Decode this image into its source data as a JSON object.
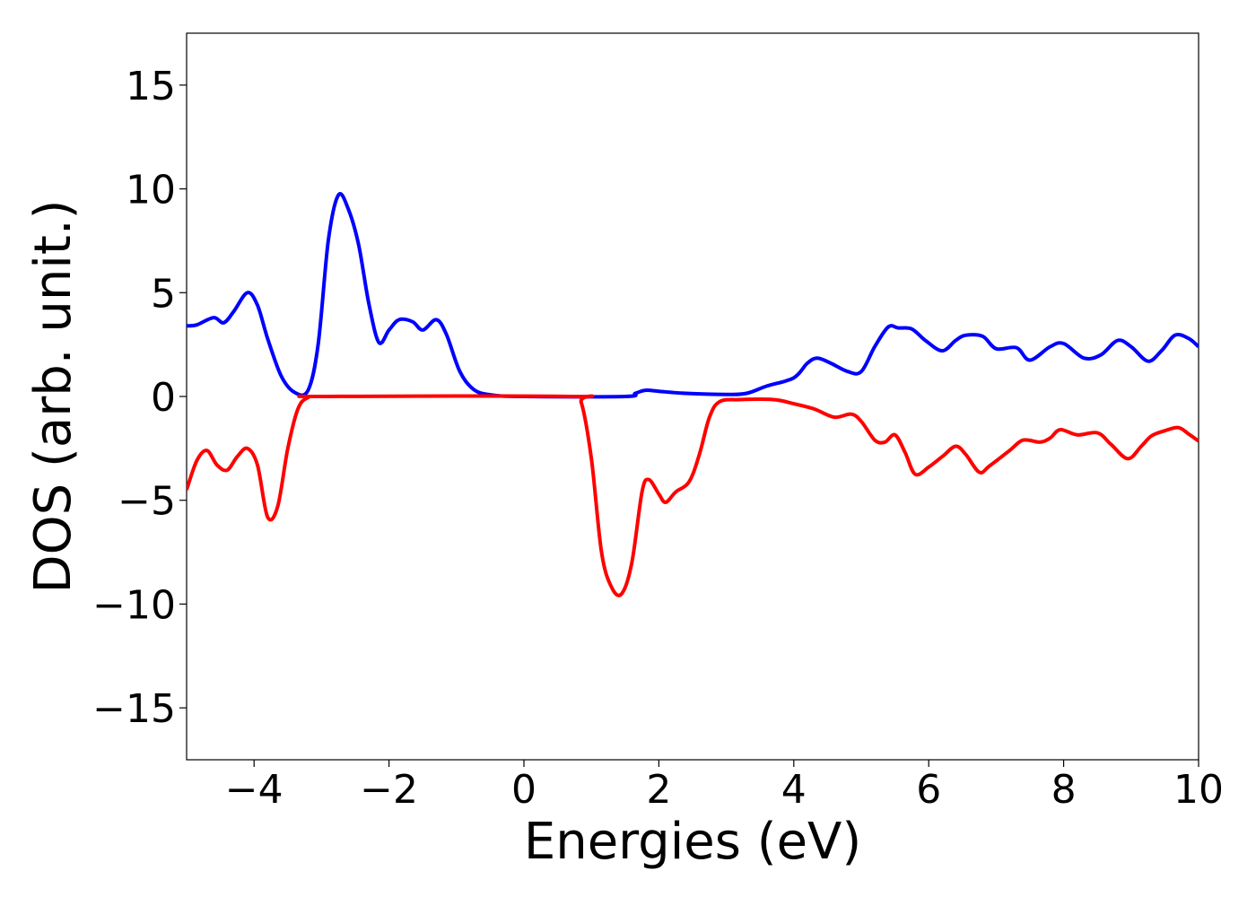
{
  "chart_data": {
    "type": "line",
    "xlabel": "Energies (eV)",
    "ylabel": "DOS (arb. unit.)",
    "xlim": [
      -5,
      10
    ],
    "ylim": [
      -17.5,
      17.5
    ],
    "x_ticks": [
      -4,
      -2,
      0,
      2,
      4,
      6,
      8,
      10
    ],
    "x_tick_labels": [
      "−4",
      "−2",
      "0",
      "2",
      "4",
      "6",
      "8",
      "10"
    ],
    "y_ticks": [
      15,
      10,
      5,
      0,
      -5,
      -10,
      -15
    ],
    "y_tick_labels": [
      "15",
      "10",
      "5",
      "0",
      "−5",
      "−10",
      "−15"
    ],
    "grid": false,
    "series": [
      {
        "color": "#0000ff",
        "points": [
          [
            -5.0,
            3.4
          ],
          [
            -4.85,
            3.45
          ],
          [
            -4.6,
            3.8
          ],
          [
            -4.45,
            3.55
          ],
          [
            -4.3,
            4.1
          ],
          [
            -4.1,
            5.0
          ],
          [
            -3.95,
            4.4
          ],
          [
            -3.8,
            2.8
          ],
          [
            -3.6,
            1.0
          ],
          [
            -3.4,
            0.2
          ],
          [
            -3.2,
            0.3
          ],
          [
            -3.05,
            2.5
          ],
          [
            -2.9,
            7.5
          ],
          [
            -2.75,
            9.7
          ],
          [
            -2.6,
            9.0
          ],
          [
            -2.45,
            7.3
          ],
          [
            -2.3,
            4.5
          ],
          [
            -2.15,
            2.6
          ],
          [
            -2.0,
            3.2
          ],
          [
            -1.85,
            3.7
          ],
          [
            -1.65,
            3.6
          ],
          [
            -1.5,
            3.2
          ],
          [
            -1.3,
            3.7
          ],
          [
            -1.15,
            3.0
          ],
          [
            -0.95,
            1.2
          ],
          [
            -0.75,
            0.35
          ],
          [
            -0.5,
            0.08
          ],
          [
            0.0,
            0.0
          ],
          [
            1.5,
            0.0
          ],
          [
            1.65,
            0.15
          ],
          [
            1.8,
            0.3
          ],
          [
            2.0,
            0.25
          ],
          [
            2.4,
            0.15
          ],
          [
            3.0,
            0.1
          ],
          [
            3.3,
            0.15
          ],
          [
            3.6,
            0.5
          ],
          [
            4.0,
            0.9
          ],
          [
            4.2,
            1.6
          ],
          [
            4.35,
            1.85
          ],
          [
            4.55,
            1.6
          ],
          [
            4.8,
            1.2
          ],
          [
            5.0,
            1.2
          ],
          [
            5.2,
            2.4
          ],
          [
            5.4,
            3.35
          ],
          [
            5.55,
            3.3
          ],
          [
            5.75,
            3.25
          ],
          [
            5.95,
            2.7
          ],
          [
            6.2,
            2.2
          ],
          [
            6.4,
            2.7
          ],
          [
            6.55,
            2.95
          ],
          [
            6.8,
            2.9
          ],
          [
            7.0,
            2.3
          ],
          [
            7.3,
            2.35
          ],
          [
            7.5,
            1.75
          ],
          [
            7.8,
            2.4
          ],
          [
            8.0,
            2.55
          ],
          [
            8.3,
            1.85
          ],
          [
            8.55,
            2.0
          ],
          [
            8.8,
            2.7
          ],
          [
            9.0,
            2.4
          ],
          [
            9.25,
            1.7
          ],
          [
            9.45,
            2.2
          ],
          [
            9.65,
            2.95
          ],
          [
            9.85,
            2.8
          ],
          [
            10.0,
            2.4
          ]
        ]
      },
      {
        "color": "#ff0000",
        "points": [
          [
            -5.0,
            -4.5
          ],
          [
            -4.85,
            -3.1
          ],
          [
            -4.7,
            -2.6
          ],
          [
            -4.55,
            -3.3
          ],
          [
            -4.4,
            -3.55
          ],
          [
            -4.25,
            -2.9
          ],
          [
            -4.1,
            -2.5
          ],
          [
            -3.95,
            -3.3
          ],
          [
            -3.8,
            -5.8
          ],
          [
            -3.65,
            -5.3
          ],
          [
            -3.5,
            -2.5
          ],
          [
            -3.35,
            -0.6
          ],
          [
            -3.2,
            -0.05
          ],
          [
            -3.0,
            0.0
          ],
          [
            0.7,
            0.0
          ],
          [
            0.85,
            -0.3
          ],
          [
            1.0,
            -3.0
          ],
          [
            1.15,
            -7.5
          ],
          [
            1.3,
            -9.2
          ],
          [
            1.45,
            -9.5
          ],
          [
            1.6,
            -8.0
          ],
          [
            1.75,
            -4.6
          ],
          [
            1.85,
            -4.0
          ],
          [
            2.0,
            -4.7
          ],
          [
            2.1,
            -5.1
          ],
          [
            2.25,
            -4.6
          ],
          [
            2.45,
            -4.1
          ],
          [
            2.6,
            -2.8
          ],
          [
            2.75,
            -1.0
          ],
          [
            2.9,
            -0.25
          ],
          [
            3.2,
            -0.15
          ],
          [
            3.7,
            -0.15
          ],
          [
            4.0,
            -0.35
          ],
          [
            4.3,
            -0.6
          ],
          [
            4.6,
            -1.0
          ],
          [
            4.85,
            -0.85
          ],
          [
            5.0,
            -1.2
          ],
          [
            5.2,
            -2.1
          ],
          [
            5.35,
            -2.2
          ],
          [
            5.5,
            -1.85
          ],
          [
            5.65,
            -2.7
          ],
          [
            5.8,
            -3.75
          ],
          [
            6.0,
            -3.4
          ],
          [
            6.2,
            -2.9
          ],
          [
            6.4,
            -2.4
          ],
          [
            6.55,
            -2.8
          ],
          [
            6.75,
            -3.65
          ],
          [
            6.9,
            -3.35
          ],
          [
            7.2,
            -2.6
          ],
          [
            7.4,
            -2.1
          ],
          [
            7.65,
            -2.2
          ],
          [
            7.8,
            -2.0
          ],
          [
            7.95,
            -1.6
          ],
          [
            8.2,
            -1.85
          ],
          [
            8.5,
            -1.75
          ],
          [
            8.7,
            -2.3
          ],
          [
            8.95,
            -3.0
          ],
          [
            9.15,
            -2.4
          ],
          [
            9.3,
            -1.9
          ],
          [
            9.5,
            -1.65
          ],
          [
            9.7,
            -1.5
          ],
          [
            9.85,
            -1.8
          ],
          [
            10.0,
            -2.15
          ]
        ]
      }
    ]
  }
}
